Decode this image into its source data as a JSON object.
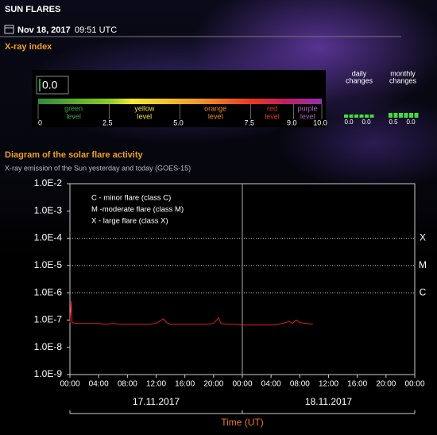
{
  "header": {
    "title": "SUN FLARES",
    "date": "Nov 18, 2017",
    "time": "09:51 UTC"
  },
  "xray_index": {
    "title": "X-ray index",
    "index": {
      "value": 0,
      "label": "0.0"
    },
    "scale": [
      0,
      {
        "value": 2.5,
        "label": "2.5"
      },
      {
        "value": 5,
        "label": "5.0"
      },
      {
        "value": 7.5,
        "label": "7.5"
      },
      {
        "value": 9,
        "label": "9.0"
      },
      {
        "value": 10,
        "label": "10.0"
      }
    ],
    "levels": [
      {
        "name": "green",
        "word": "level",
        "color": "#3fa34a"
      },
      {
        "name": "yellow",
        "word": "level",
        "color": "#f2e33a"
      },
      {
        "name": "orange",
        "word": "level",
        "color": "#f08a2a"
      },
      {
        "name": "red",
        "word": "level",
        "color": "#e23a2a"
      },
      {
        "name": "purple",
        "word": "level",
        "color": "#b060c0"
      }
    ],
    "daily": {
      "title": [
        "daily",
        "changes"
      ],
      "values": [
        "0.0",
        "0.0"
      ]
    },
    "monthly": {
      "title": [
        "monthly",
        "changes"
      ],
      "values": [
        "0.5",
        "0.0"
      ]
    }
  },
  "chart_data": {
    "type": "line",
    "title": "Diagram of the solar flare activity",
    "subtitle": "X-ray emission of the Sun yesterday and today (GOES-15)",
    "xlabel": "Time (UT)",
    "log_y": true,
    "xlim": [
      0,
      48
    ],
    "ylim": [
      1e-09,
      0.01
    ],
    "xticks": [
      {
        "value": 0,
        "label": "00:00"
      },
      {
        "value": 4,
        "label": "04:00"
      },
      {
        "value": 8,
        "label": "08:00"
      },
      {
        "value": 12,
        "label": "12:00"
      },
      {
        "value": 16,
        "label": "16:00"
      },
      {
        "value": 20,
        "label": "20:00"
      },
      {
        "value": 24,
        "label": "00:00"
      },
      {
        "value": 28,
        "label": "04:00"
      },
      {
        "value": 32,
        "label": "08:00"
      },
      {
        "value": 36,
        "label": "12:00"
      },
      {
        "value": 40,
        "label": "16:00"
      },
      {
        "value": 44,
        "label": "20:00"
      },
      {
        "value": 48,
        "label": "00:00"
      }
    ],
    "yticks": [
      {
        "value": 0.01,
        "label": "1.0E-2"
      },
      {
        "value": 0.001,
        "label": "1.0E-3"
      },
      {
        "value": 0.0001,
        "label": "1.0E-4"
      },
      {
        "value": 1e-05,
        "label": "1.0E-5"
      },
      {
        "value": 1e-06,
        "label": "1.0E-6"
      },
      {
        "value": 1e-07,
        "label": "1.0E-7"
      },
      {
        "value": 1e-08,
        "label": "1.0E-8"
      },
      {
        "value": 1e-09,
        "label": "1.0E-9"
      }
    ],
    "thresholds": [
      {
        "value": 0.0001,
        "label": "X"
      },
      {
        "value": 1e-05,
        "label": "M"
      },
      {
        "value": 1e-06,
        "label": "C"
      }
    ],
    "annotations": [
      "C - minor flare (class C)",
      "M -moderate flare (class M)",
      "X - large flare (class X)"
    ],
    "days": [
      {
        "label": "17.11.2017",
        "start": 0,
        "end": 24
      },
      {
        "label": "18.11.2017",
        "start": 24,
        "end": 48
      }
    ],
    "series": [
      {
        "color": "#e02020",
        "x": [
          0,
          0.2,
          0.3,
          1,
          2,
          3,
          4,
          5,
          6,
          7,
          8,
          9,
          10,
          11,
          12,
          13,
          13.5,
          14,
          15,
          16,
          17,
          18,
          19,
          20,
          20.7,
          21,
          22,
          23,
          24,
          25,
          26,
          27,
          28,
          29,
          30,
          30.5,
          31,
          31.5,
          32,
          33,
          33.8
        ],
        "values": [
          8e-08,
          5e-07,
          8e-08,
          7.5e-08,
          7.5e-08,
          7.5e-08,
          7.5e-08,
          7e-08,
          7.5e-08,
          7e-08,
          7e-08,
          7e-08,
          7e-08,
          7e-08,
          7.5e-08,
          1.1e-07,
          8e-08,
          7e-08,
          7e-08,
          7e-08,
          7e-08,
          7e-08,
          7e-08,
          7.5e-08,
          1.2e-07,
          7.5e-08,
          7e-08,
          7e-08,
          6.5e-08,
          6.5e-08,
          6.5e-08,
          6.5e-08,
          6.5e-08,
          7e-08,
          8e-08,
          9e-08,
          7.5e-08,
          1e-07,
          8e-08,
          7.5e-08,
          7e-08
        ]
      }
    ]
  }
}
